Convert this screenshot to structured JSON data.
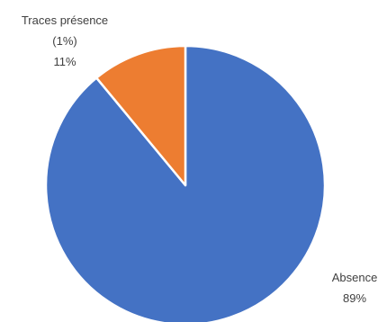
{
  "chart_data": {
    "type": "pie",
    "slices": [
      {
        "name": "Absence",
        "value": 89,
        "percent_label": "89%",
        "label_lines": [
          "Absence"
        ],
        "color": "#4472C4"
      },
      {
        "name": "Traces présence (1%)",
        "value": 11,
        "percent_label": "11%",
        "label_lines": [
          "Traces présence",
          "(1%)"
        ],
        "color": "#ED7D31"
      }
    ],
    "start_angle_deg": 0,
    "direction": "clockwise",
    "slice_border_color": "#ffffff",
    "legend": "none"
  }
}
